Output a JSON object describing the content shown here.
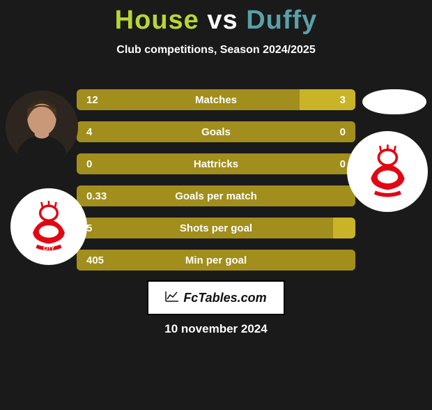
{
  "title": {
    "left": "House",
    "vs": "vs",
    "right": "Duffy",
    "left_color": "#b8d634",
    "right_color": "#5aa0a8"
  },
  "subtitle": "Club competitions, Season 2024/2025",
  "colors": {
    "bar_left": "#a18e1c",
    "bar_right": "#c9b428",
    "bar_base": "#a18e1c"
  },
  "rows": [
    {
      "label": "Matches",
      "left": "12",
      "right": "3",
      "left_pct": 80,
      "right_pct": 20
    },
    {
      "label": "Goals",
      "left": "4",
      "right": "0",
      "left_pct": 100,
      "right_pct": 0
    },
    {
      "label": "Hattricks",
      "left": "0",
      "right": "0",
      "left_pct": 0,
      "right_pct": 0
    },
    {
      "label": "Goals per match",
      "left": "0.33",
      "right": "",
      "left_pct": 100,
      "right_pct": 0
    },
    {
      "label": "Shots per goal",
      "left": "5",
      "right": "",
      "left_pct": 92,
      "right_pct": 8
    },
    {
      "label": "Min per goal",
      "left": "405",
      "right": "",
      "left_pct": 100,
      "right_pct": 0
    }
  ],
  "badge": "FcTables.com",
  "date": "10 november 2024"
}
